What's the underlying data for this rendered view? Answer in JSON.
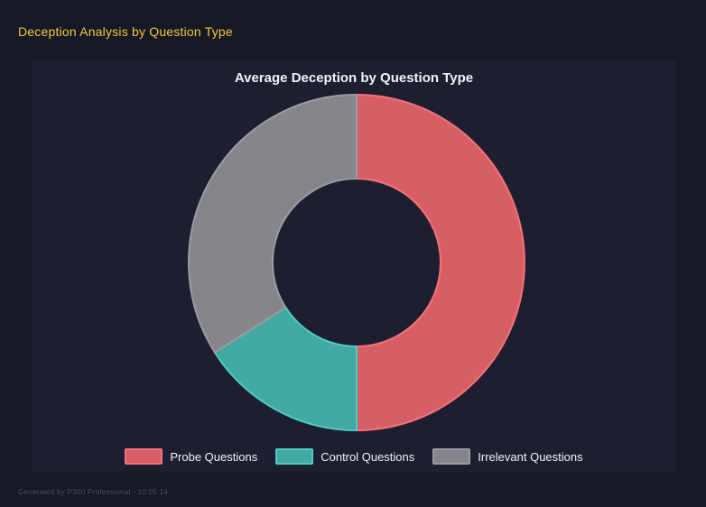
{
  "header": {
    "title": "Deception Analysis by Question Type"
  },
  "chart_panel": {
    "title": "Average Deception by Question Type"
  },
  "chart_data": {
    "type": "pie",
    "variant": "donut",
    "title": "Average Deception by Question Type",
    "categories": [
      "Probe Questions",
      "Control Questions",
      "Irrelevant Questions"
    ],
    "values": [
      50,
      16,
      34
    ],
    "values_note": "percent share of donut, estimated from arc angles",
    "cutout_percent": 50,
    "start_angle": "top",
    "direction": "clockwise",
    "legend_position": "bottom",
    "grid": false,
    "segments": [
      {
        "label": "Probe Questions",
        "value": 50,
        "fill": "#d65f66",
        "border": "#f8707a"
      },
      {
        "label": "Control Questions",
        "value": 16,
        "fill": "#41a8a2",
        "border": "#4ecdc4"
      },
      {
        "label": "Irrelevant Questions",
        "value": 34,
        "fill": "#85858b",
        "border": "#9b9ba2"
      }
    ]
  },
  "footer": {
    "text": "Generated by P300 Professional - 10:05:14"
  },
  "colors": {
    "page_background": "#171825",
    "panel_background": "#1d1f31",
    "header_text": "#f0c93a",
    "chart_title_text": "#f2f2f6",
    "legend_text": "#f2f2f6",
    "footer_text": "#4b5066"
  }
}
